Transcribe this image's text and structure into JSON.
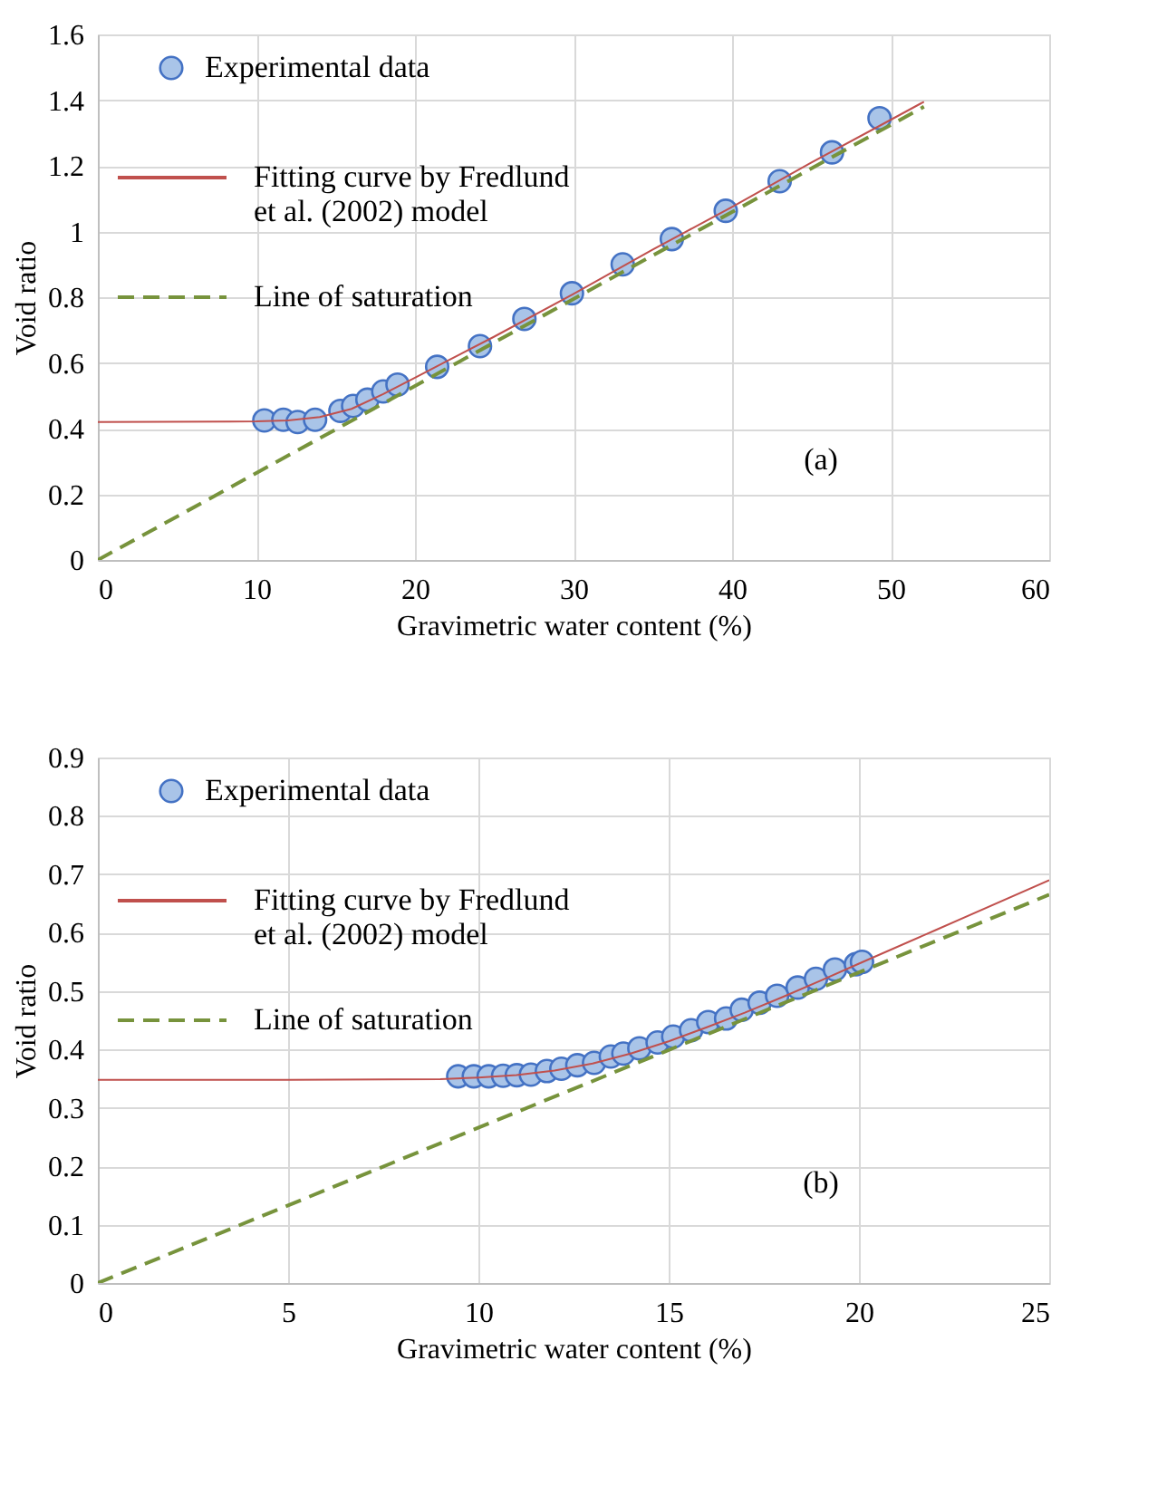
{
  "chart_data": [
    {
      "type": "scatter",
      "xlabel": "Gravimetric water content (%)",
      "ylabel": "Void ratio",
      "annotations": [
        "(a)"
      ],
      "xlim": [
        0,
        60
      ],
      "xticks": [
        0,
        10,
        20,
        30,
        40,
        50,
        60
      ],
      "ylim": [
        0,
        1.6
      ],
      "yticks": [
        0,
        0.2,
        0.4,
        0.6,
        0.8,
        1,
        1.2,
        1.4,
        1.6
      ],
      "grid": true,
      "legend": "top left",
      "series": [
        {
          "name": "Experimental data",
          "marker": "circle",
          "color": "#a9c4e8",
          "x": [
            10.5,
            11.7,
            12.6,
            13.7,
            15.3,
            16.1,
            17.0,
            18.0,
            18.9,
            21.4,
            24.1,
            26.9,
            29.9,
            33.1,
            36.2,
            39.6,
            43.0,
            46.3,
            49.3
          ],
          "values": [
            0.425,
            0.427,
            0.42,
            0.427,
            0.454,
            0.469,
            0.488,
            0.513,
            0.534,
            0.588,
            0.651,
            0.734,
            0.812,
            0.9,
            0.977,
            1.063,
            1.153,
            1.241,
            1.345
          ]
        },
        {
          "name": "Fitting curve by Fredlund et al. (2002) model",
          "type": "line",
          "line_style": "solid",
          "color": "#c0504d",
          "x": [
            0,
            10,
            12,
            14,
            16,
            18,
            20,
            22,
            25,
            30,
            35,
            40,
            45,
            50,
            52.1
          ],
          "values": [
            0.42,
            0.422,
            0.425,
            0.435,
            0.46,
            0.505,
            0.555,
            0.605,
            0.68,
            0.81,
            0.945,
            1.075,
            1.21,
            1.34,
            1.395
          ]
        },
        {
          "name": "Line of saturation",
          "type": "line",
          "line_style": "dashed",
          "color": "#77933c",
          "x": [
            0,
            52.1
          ],
          "values": [
            0,
            1.38
          ]
        }
      ]
    },
    {
      "type": "scatter",
      "xlabel": "Gravimetric water content (%)",
      "ylabel": "Void ratio",
      "annotations": [
        "(b)"
      ],
      "xlim": [
        0,
        25
      ],
      "xticks": [
        0,
        5,
        10,
        15,
        20,
        25
      ],
      "ylim": [
        0,
        0.9
      ],
      "yticks": [
        0,
        0.1,
        0.2,
        0.3,
        0.4,
        0.5,
        0.6,
        0.7,
        0.8,
        0.9
      ],
      "grid": true,
      "legend": "top left",
      "series": [
        {
          "name": "Experimental data",
          "marker": "circle",
          "color": "#a9c4e8",
          "x": [
            9.47,
            9.88,
            10.27,
            10.65,
            11.01,
            11.38,
            11.8,
            12.18,
            12.6,
            13.04,
            13.48,
            13.81,
            14.23,
            14.71,
            15.12,
            15.59,
            16.04,
            16.51,
            16.92,
            17.39,
            17.85,
            18.39,
            18.87,
            19.37,
            19.92,
            20.08
          ],
          "values": [
            0.354,
            0.354,
            0.354,
            0.355,
            0.356,
            0.357,
            0.363,
            0.367,
            0.373,
            0.377,
            0.388,
            0.393,
            0.402,
            0.412,
            0.422,
            0.433,
            0.447,
            0.453,
            0.468,
            0.48,
            0.492,
            0.506,
            0.521,
            0.537,
            0.546,
            0.55
          ]
        },
        {
          "name": "Fitting curve by Fredlund et al. (2002) model",
          "type": "line",
          "line_style": "solid",
          "color": "#c0504d",
          "x": [
            0,
            5,
            9,
            10,
            11,
            12,
            13,
            14,
            15,
            16,
            17,
            18,
            19,
            20,
            22,
            25
          ],
          "values": [
            0.348,
            0.348,
            0.349,
            0.352,
            0.356,
            0.364,
            0.376,
            0.393,
            0.414,
            0.438,
            0.463,
            0.49,
            0.518,
            0.547,
            0.604,
            0.69
          ]
        },
        {
          "name": "Line of saturation",
          "type": "line",
          "line_style": "dashed",
          "color": "#77933c",
          "x": [
            0,
            25
          ],
          "values": [
            0,
            0.665
          ]
        }
      ]
    }
  ]
}
